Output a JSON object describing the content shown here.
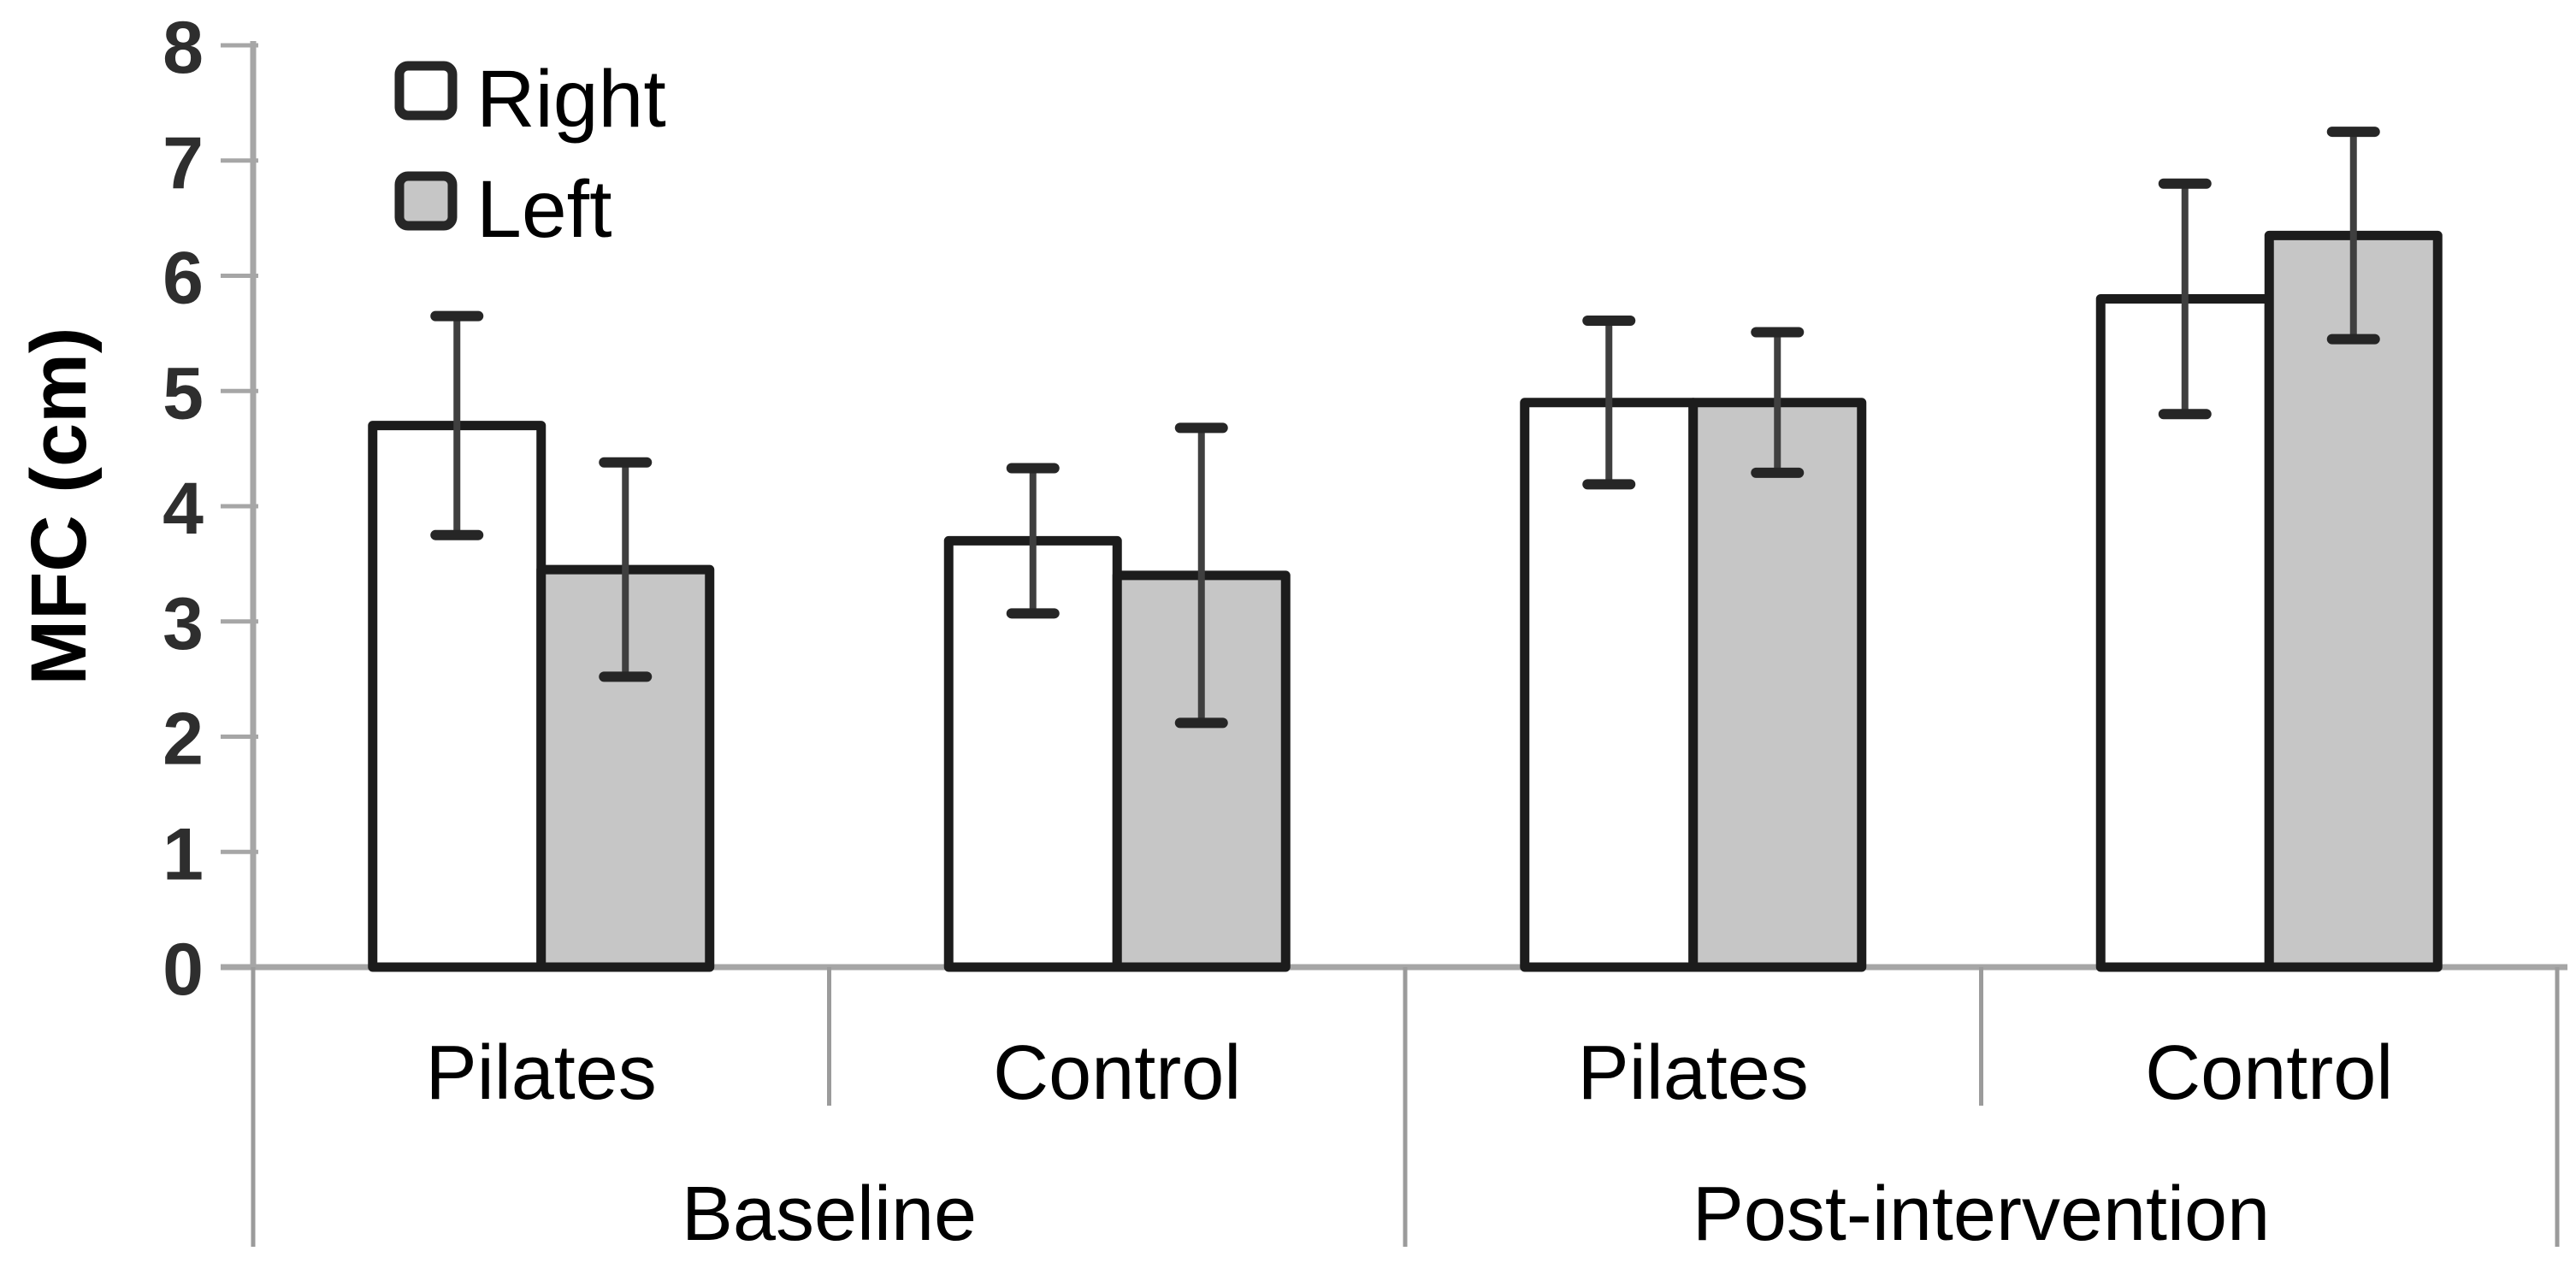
{
  "figure": {
    "kind": "grouped-bar-chart-with-error-bars",
    "background": "#ffffff"
  },
  "chart_data": {
    "type": "bar",
    "title": "",
    "xlabel": "",
    "ylabel": "MFC (cm)",
    "ylim": [
      0,
      8
    ],
    "yticks": [
      0,
      1,
      2,
      3,
      4,
      5,
      6,
      7,
      8
    ],
    "grid": false,
    "legend_position": "top-left",
    "group_labels": [
      "Baseline",
      "Post-intervention"
    ],
    "categories": [
      "Pilates",
      "Control",
      "Pilates",
      "Control"
    ],
    "category_group_index": [
      0,
      0,
      1,
      1
    ],
    "series": [
      {
        "name": "Right",
        "fill": "#ffffff",
        "values": [
          4.7,
          3.7,
          4.9,
          5.8
        ],
        "errors": [
          0.95,
          0.63,
          0.71,
          1.0
        ]
      },
      {
        "name": "Left",
        "fill": "#c6c6c6",
        "values": [
          3.45,
          3.4,
          4.9,
          6.35
        ],
        "errors": [
          0.93,
          1.28,
          0.61,
          0.9
        ]
      }
    ],
    "colors": {
      "bar_outline": "#1c1c1c",
      "error_stem": "#3f3f3f",
      "error_cap": "#262626",
      "axis": "#a6a6a6",
      "divider": "#9b9b9b",
      "tick_label": "#2e2e2e",
      "text": "#000000"
    }
  }
}
